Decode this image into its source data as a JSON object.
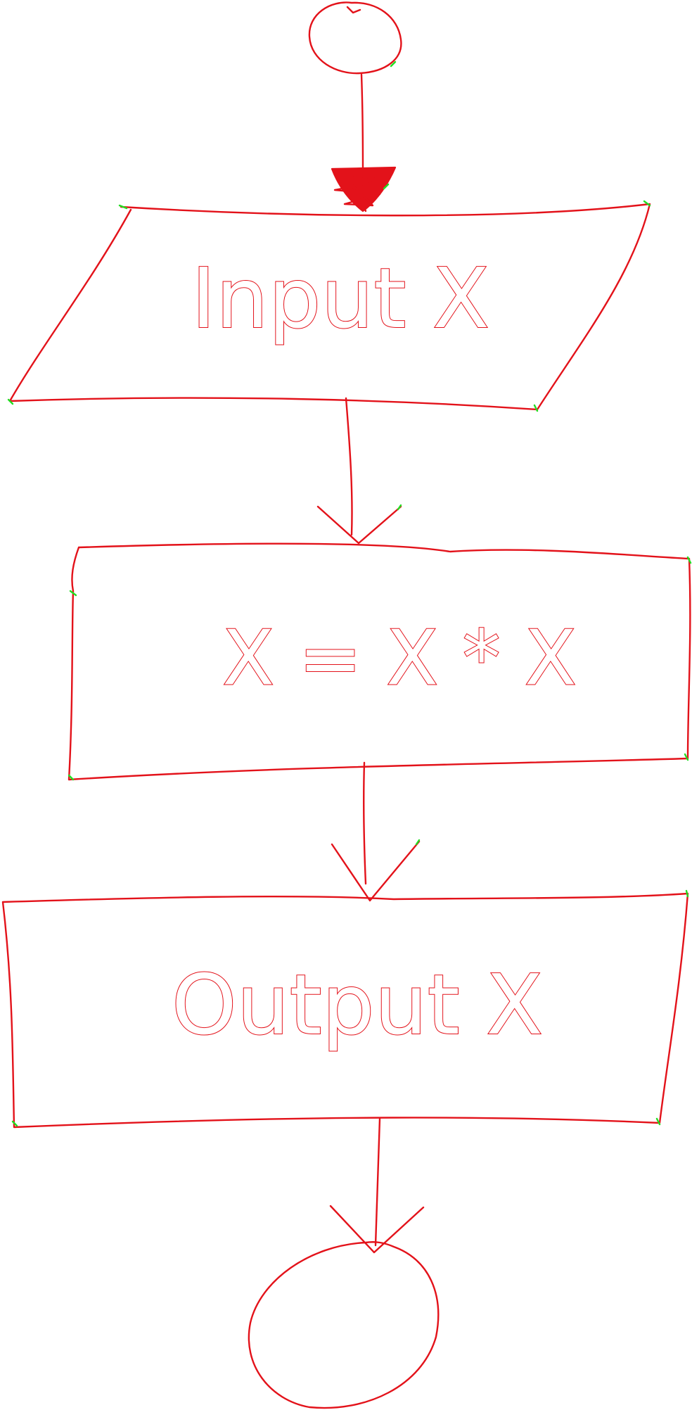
{
  "colors": {
    "stroke": "#e3121a",
    "stroke_end": "#22dd22",
    "background": "#ffffff"
  },
  "diagram": {
    "type": "hand-drawn flowchart",
    "nodes": [
      {
        "id": "start",
        "shape": "circle",
        "label": ""
      },
      {
        "id": "input",
        "shape": "parallelogram",
        "label": "Input X"
      },
      {
        "id": "process",
        "shape": "rectangle",
        "label": "X = X * X"
      },
      {
        "id": "output",
        "shape": "rectangle",
        "label": "Output X"
      },
      {
        "id": "end",
        "shape": "circle",
        "label": ""
      }
    ],
    "edges": [
      {
        "from": "start",
        "to": "input",
        "arrowhead": "filled"
      },
      {
        "from": "input",
        "to": "process",
        "arrowhead": "open"
      },
      {
        "from": "process",
        "to": "output",
        "arrowhead": "open"
      },
      {
        "from": "output",
        "to": "end",
        "arrowhead": "open"
      }
    ]
  }
}
